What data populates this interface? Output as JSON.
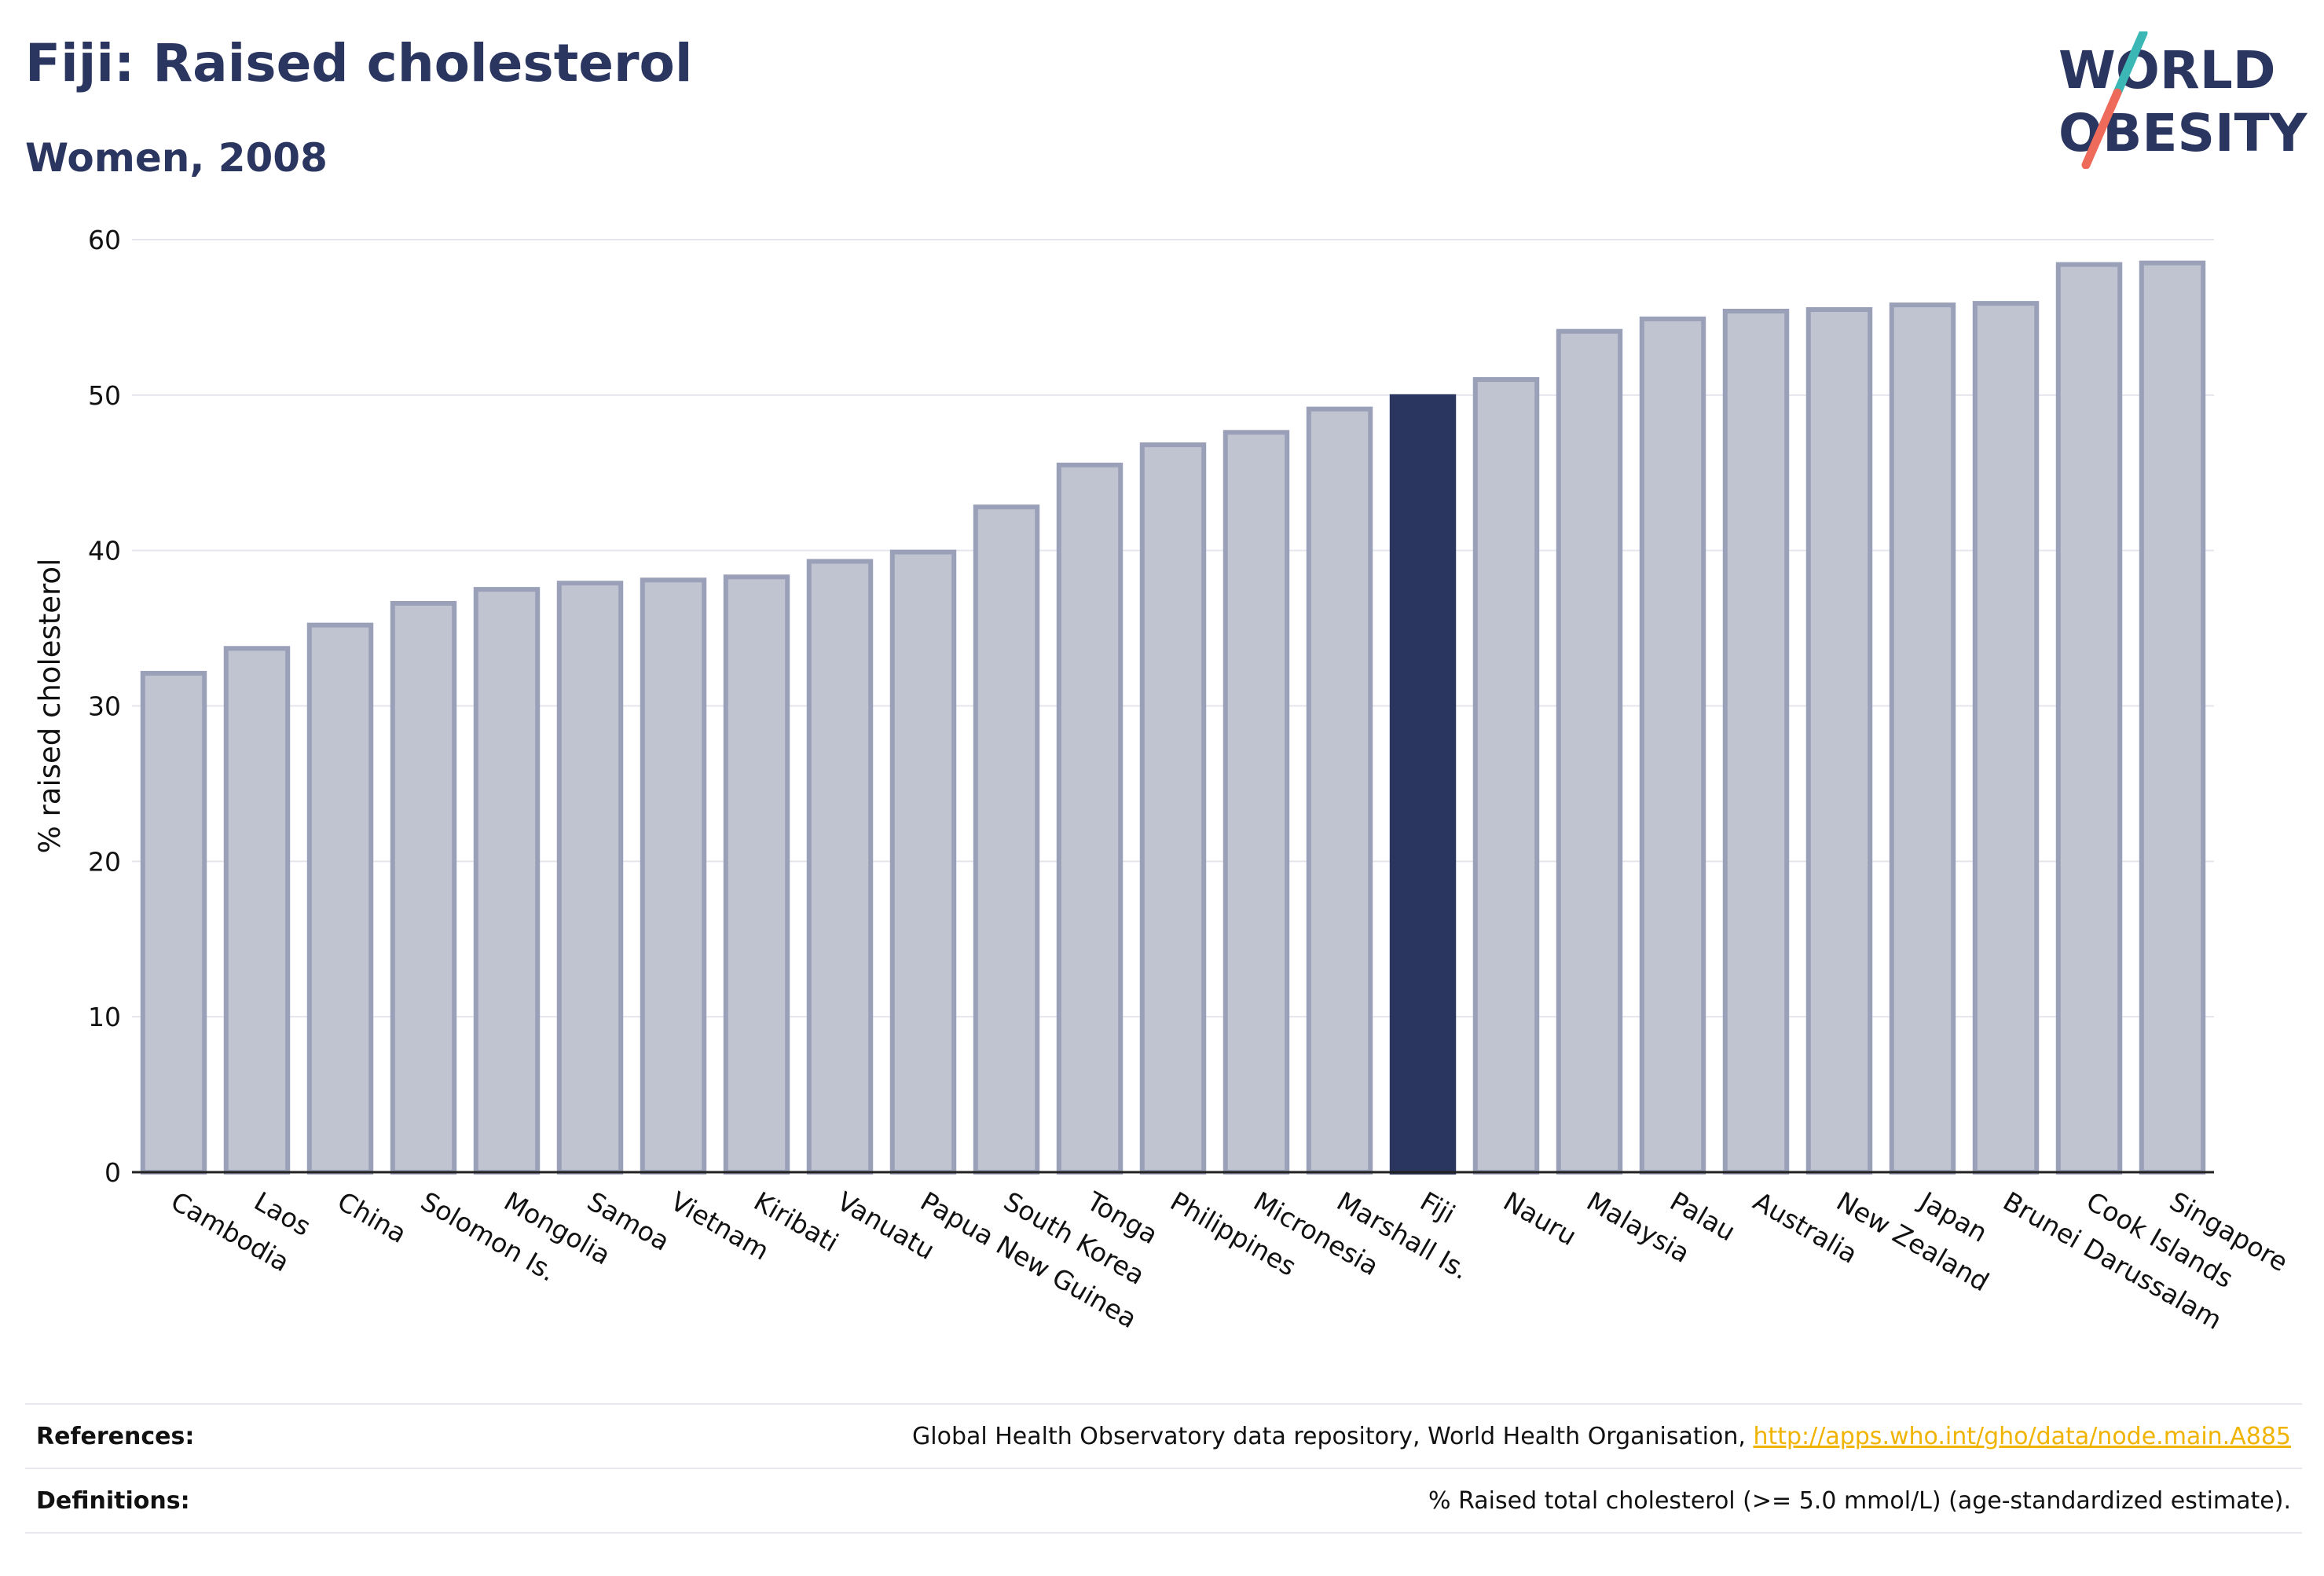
{
  "header": {
    "title": "Fiji: Raised cholesterol",
    "subtitle": "Women, 2008"
  },
  "logo": {
    "line1": "WORLD",
    "line2": "OBESITY",
    "colors": {
      "text": "#2a3560",
      "slash_teal": "#3bb8b5",
      "slash_coral": "#ee6b5b"
    }
  },
  "chart_data": {
    "type": "bar",
    "ylabel": "% raised cholesterol",
    "ylim": [
      0,
      60
    ],
    "yticks": [
      0,
      10,
      20,
      30,
      40,
      50,
      60
    ],
    "grid": true,
    "highlight": "Fiji",
    "colors": {
      "bar": "#c0c3d0",
      "bar_border": "#9aa0b8",
      "highlight": "#2a3560"
    },
    "categories": [
      "Cambodia",
      "Laos",
      "China",
      "Solomon Is.",
      "Mongolia",
      "Samoa",
      "Vietnam",
      "Kiribati",
      "Vanuatu",
      "Papua New Guinea",
      "South Korea",
      "Tonga",
      "Philippines",
      "Micronesia",
      "Marshall Is.",
      "Fiji",
      "Nauru",
      "Malaysia",
      "Palau",
      "Australia",
      "New Zealand",
      "Japan",
      "Brunei Darussalam",
      "Cook Islands",
      "Singapore"
    ],
    "values": [
      32.1,
      33.7,
      35.2,
      36.6,
      37.5,
      37.9,
      38.1,
      38.3,
      39.3,
      39.9,
      42.8,
      45.5,
      46.8,
      47.6,
      49.1,
      49.9,
      51.0,
      54.1,
      54.9,
      55.4,
      55.5,
      55.8,
      55.9,
      58.4,
      58.5
    ]
  },
  "footer": {
    "references_label": "References:",
    "references_text": "Global Health Observatory data repository, World Health Organisation, ",
    "references_link": "http://apps.who.int/gho/data/node.main.A885",
    "definitions_label": "Definitions:",
    "definitions_text": "% Raised total cholesterol (>= 5.0 mmol/L) (age-standardized estimate)."
  }
}
